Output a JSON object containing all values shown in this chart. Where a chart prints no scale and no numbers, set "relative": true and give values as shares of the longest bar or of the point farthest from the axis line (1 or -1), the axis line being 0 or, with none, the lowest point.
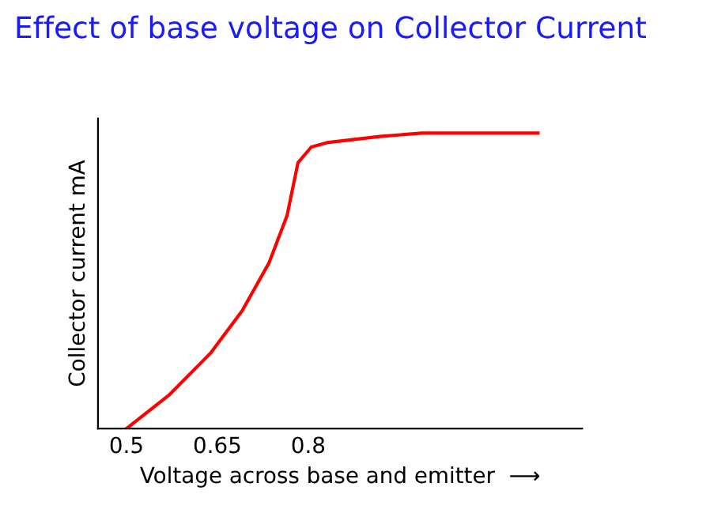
{
  "chart_data": {
    "type": "line",
    "title": "Effect of base voltage on Collector Current",
    "xlabel": "Voltage across base and emitter  ⟶",
    "ylabel": "Collector current mA",
    "relative": true,
    "x": [
      0.5,
      0.57,
      0.639,
      0.691,
      0.735,
      0.765,
      0.783,
      0.805,
      0.831,
      0.918,
      0.987,
      1.179
    ],
    "series": [
      {
        "color": "#ff0000",
        "values": [
          0,
          0.113,
          0.256,
          0.399,
          0.56,
          0.721,
          0.9,
          0.953,
          0.968,
          0.989,
          1,
          1
        ]
      }
    ],
    "xlim": [
      0.453,
      1.252
    ],
    "xticks": [
      0.5,
      0.65,
      0.8
    ],
    "grid": false,
    "legend": false,
    "marker": "none",
    "line_style": "solid"
  }
}
